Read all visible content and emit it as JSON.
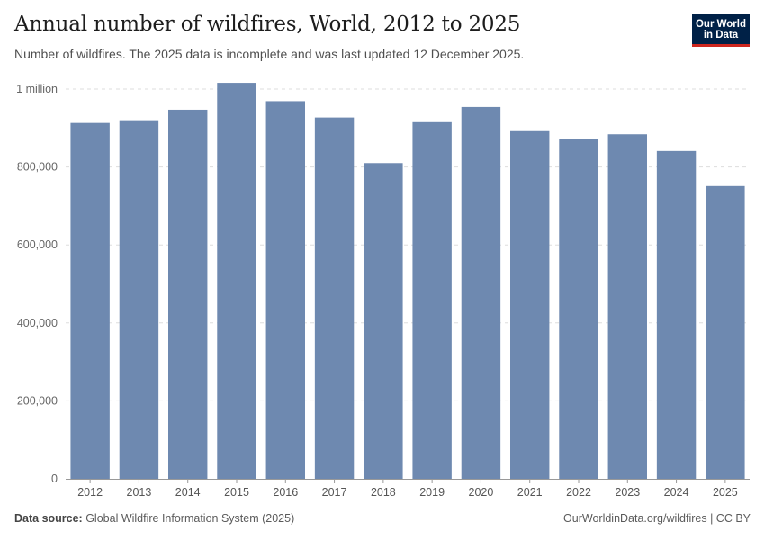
{
  "header": {
    "title": "Annual number of wildfires, World, 2012 to 2025",
    "subtitle": "Number of wildfires. The 2025 data is incomplete and was last updated 12 December 2025."
  },
  "logo": {
    "line1": "Our World",
    "line2": "in Data"
  },
  "footer": {
    "source_label": "Data source:",
    "source_text": " Global Wildfire Information System (2025)",
    "credit": "OurWorldinData.org/wildfires | CC BY"
  },
  "colors": {
    "bar": "#6e89b0",
    "grid": "#dddddd",
    "axis": "#999999"
  },
  "chart_data": {
    "type": "bar",
    "title": "Annual number of wildfires, World, 2012 to 2025",
    "xlabel": "",
    "ylabel": "",
    "categories": [
      "2012",
      "2013",
      "2014",
      "2015",
      "2016",
      "2017",
      "2018",
      "2019",
      "2020",
      "2021",
      "2022",
      "2023",
      "2024",
      "2025"
    ],
    "values": [
      913000,
      920000,
      947000,
      1016000,
      969000,
      927000,
      810000,
      915000,
      954000,
      892000,
      872000,
      884000,
      841000,
      751000
    ],
    "ylim": [
      0,
      1000000
    ],
    "yticks": [
      0,
      200000,
      400000,
      600000,
      800000,
      1000000
    ],
    "ytick_labels": [
      "0",
      "200,000",
      "400,000",
      "600,000",
      "800,000",
      "1 million"
    ],
    "grid": true
  }
}
